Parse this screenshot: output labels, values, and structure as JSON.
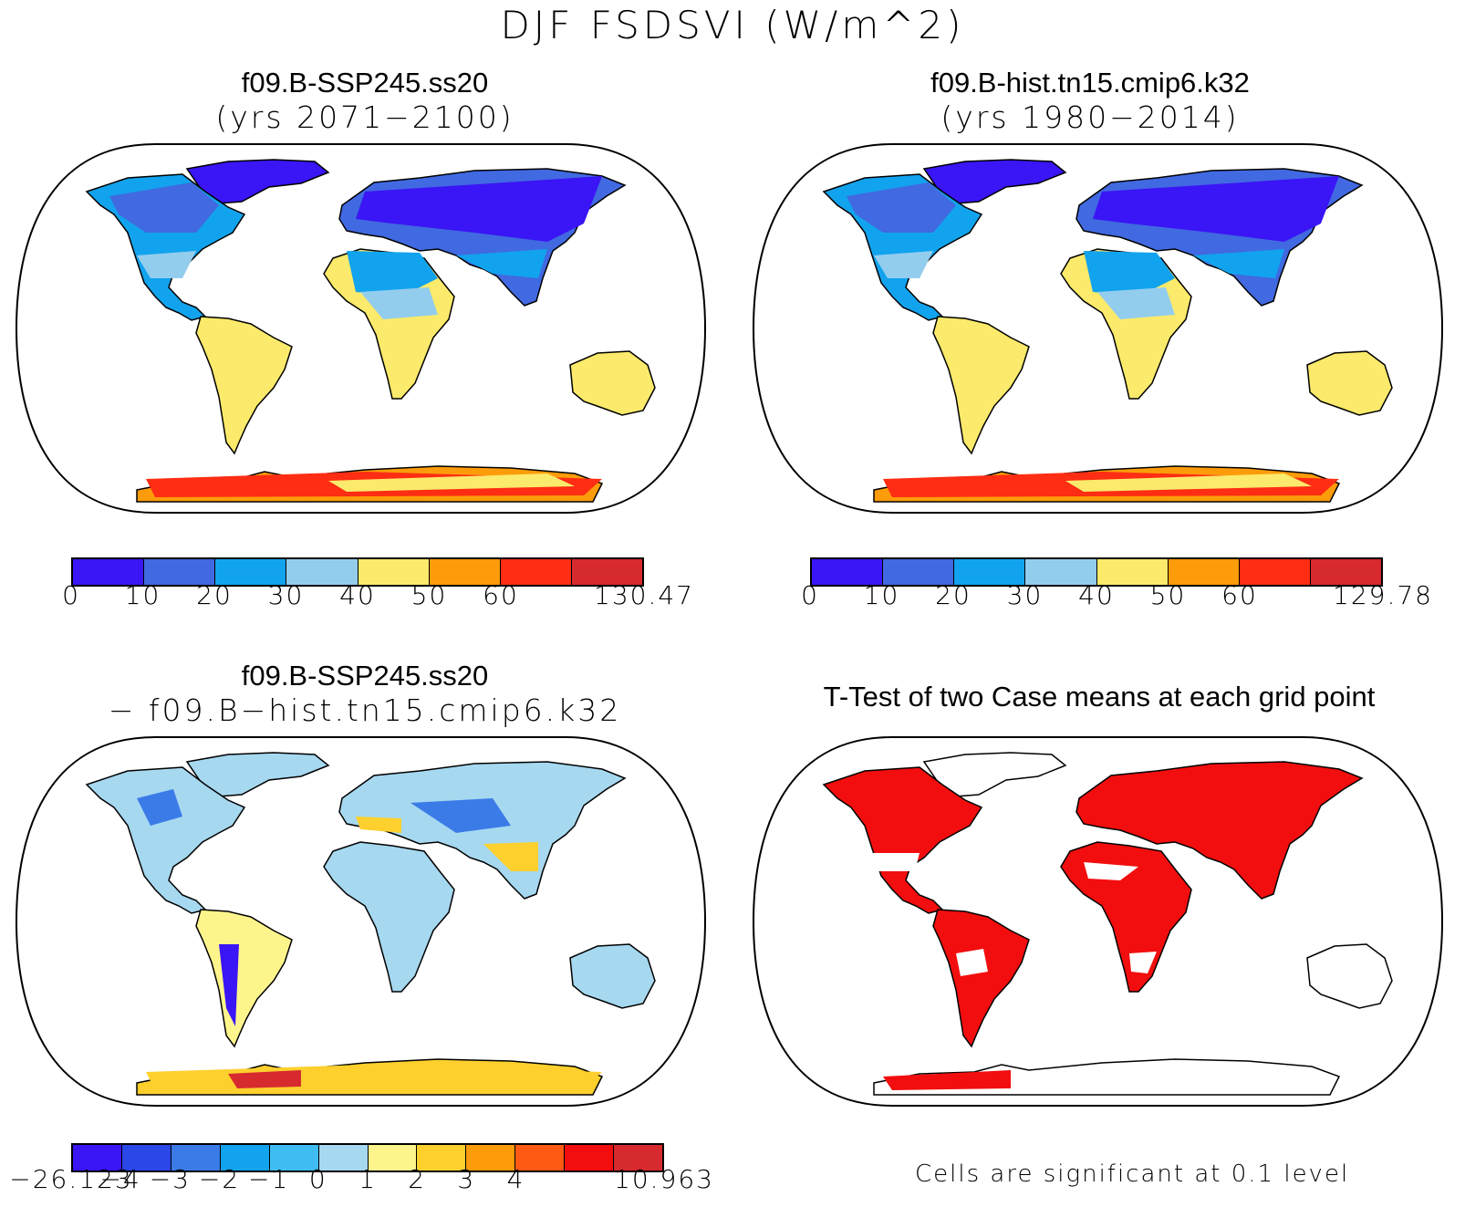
{
  "title": "DJF FSDSVI (W/m^2)",
  "panels": [
    {
      "name": "case1",
      "title_line1": "f09.B-SSP245.ss20",
      "title_line2": "(yrs 2071−2100)",
      "colorbar": {
        "colors": [
          "#3a15f5",
          "#4169e1",
          "#12a3ee",
          "#93cdee",
          "#fbea6b",
          "#fd9c0a",
          "#fe2d13",
          "#d72a2e"
        ],
        "labels": [
          "0",
          "10",
          "20",
          "30",
          "40",
          "50",
          "60",
          "130.47"
        ]
      }
    },
    {
      "name": "case2",
      "title_line1": "f09.B-hist.tn15.cmip6.k32",
      "title_line2": "(yrs 1980−2014)",
      "colorbar": {
        "colors": [
          "#3a15f5",
          "#4169e1",
          "#12a3ee",
          "#93cdee",
          "#fbea6b",
          "#fd9c0a",
          "#fe2d13",
          "#d72a2e"
        ],
        "labels": [
          "0",
          "10",
          "20",
          "30",
          "40",
          "50",
          "60",
          "129.78"
        ]
      }
    },
    {
      "name": "difference",
      "title_line1": "f09.B-SSP245.ss20",
      "title_line2": "− f09.B−hist.tn15.cmip6.k32",
      "colorbar": {
        "colors": [
          "#3a15f5",
          "#2a47e8",
          "#3b7be8",
          "#12a3ee",
          "#3fbdf3",
          "#a6d8ef",
          "#fdf58c",
          "#fdd02e",
          "#fd9c0a",
          "#fe5a13",
          "#f20e0e",
          "#d72a2e"
        ],
        "labels": [
          "−26.123",
          "−4",
          "−3",
          "−2",
          "−1",
          "0",
          "1",
          "2",
          "3",
          "4",
          "10.963"
        ]
      }
    },
    {
      "name": "ttest",
      "title_line1": "T-Test of two Case means at each grid point",
      "note": "Cells are significant at 0.1 level",
      "fill": "#f20e0e"
    }
  ]
}
